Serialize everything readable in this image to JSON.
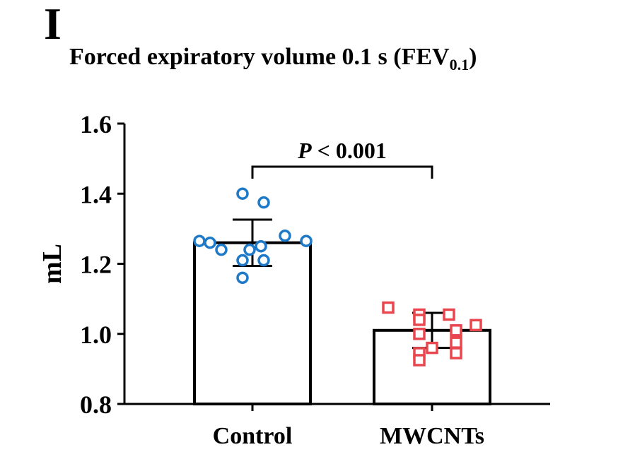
{
  "panel_label": "I",
  "chart_data": {
    "type": "bar",
    "title": "Forced expiratory volume 0.1 s (FEV",
    "title_subscript": "0.1",
    "title_suffix": ")",
    "xlabel": "",
    "ylabel": "mL",
    "ylim": [
      0.8,
      1.6
    ],
    "yticks": [
      0.8,
      1.0,
      1.2,
      1.4,
      1.6
    ],
    "ytick_labels": [
      "0.8",
      "1.0",
      "1.2",
      "1.4",
      "1.6"
    ],
    "categories": [
      "Control",
      "MWCNTs"
    ],
    "means": [
      1.26,
      1.01
    ],
    "sd": [
      0.066,
      0.05
    ],
    "points": [
      [
        1.4,
        1.375,
        1.265,
        1.26,
        1.28,
        1.265,
        1.24,
        1.24,
        1.25,
        1.21,
        1.21,
        1.16
      ],
      [
        1.075,
        1.055,
        1.055,
        1.04,
        1.025,
        1.01,
        1.0,
        0.975,
        0.96,
        0.945,
        0.945,
        0.925
      ]
    ],
    "marker_colors": [
      "#1e7ac8",
      "#e8474f"
    ],
    "marker_shapes": [
      "circle",
      "square"
    ],
    "significance": {
      "text": "P < 0.001",
      "italic_part": "P",
      "between": [
        0,
        1
      ]
    }
  }
}
